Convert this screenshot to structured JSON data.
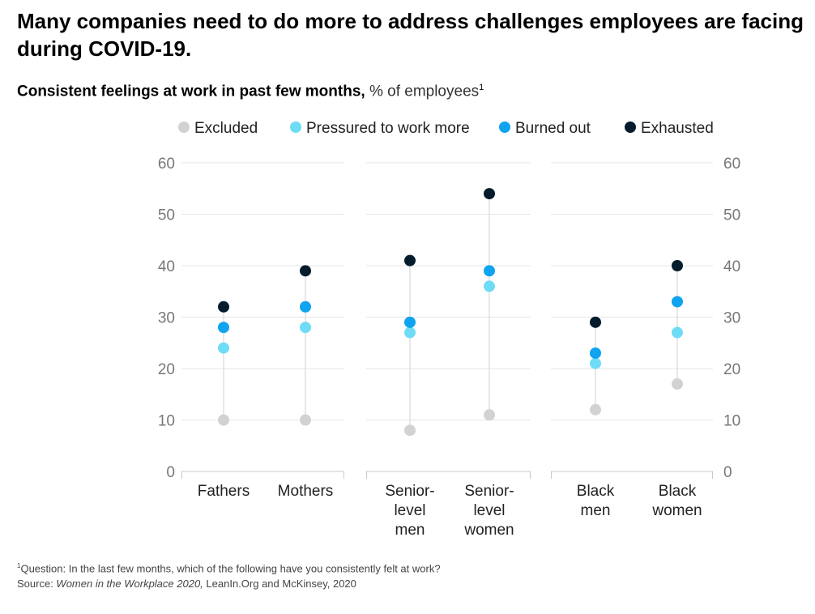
{
  "title": "Many companies need to do more to address challenges employees are facing during COVID-19.",
  "subtitle": {
    "bold": "Consistent feelings at work in past few months,",
    "light": " % of employees",
    "sup": "1"
  },
  "footnote": {
    "sup": "1",
    "question": "Question: In the last few months, which of the following have you consistently felt at work?",
    "source_label": "Source: ",
    "source_italic": "Women in the Workplace 2020,",
    "source_rest": " LeanIn.Org and McKinsey, 2020"
  },
  "chart_data": {
    "type": "scatter",
    "subtype": "dot-range",
    "title": "Consistent feelings at work in past few months, % of employees",
    "ylim": [
      0,
      60
    ],
    "yticks": [
      0,
      10,
      20,
      30,
      40,
      50,
      60
    ],
    "legend_position": "top",
    "groups": [
      {
        "categories": [
          "Fathers",
          "Mothers"
        ]
      },
      {
        "categories": [
          "Senior-level men",
          "Senior-level women"
        ]
      },
      {
        "categories": [
          "Black men",
          "Black women"
        ]
      }
    ],
    "categories": [
      "Fathers",
      "Mothers",
      "Senior-level men",
      "Senior-level women",
      "Black men",
      "Black women"
    ],
    "category_label_lines": [
      [
        "Fathers"
      ],
      [
        "Mothers"
      ],
      [
        "Senior-",
        "level",
        "men"
      ],
      [
        "Senior-",
        "level",
        "women"
      ],
      [
        "Black",
        "men"
      ],
      [
        "Black",
        "women"
      ]
    ],
    "series": [
      {
        "name": "Excluded",
        "color": "#d2d2d2",
        "values": [
          10,
          10,
          8,
          11,
          12,
          17
        ]
      },
      {
        "name": "Pressured to work more",
        "color": "#6fdcf7",
        "values": [
          24,
          28,
          27,
          36,
          21,
          27
        ]
      },
      {
        "name": "Burned out",
        "color": "#0fa3f0",
        "values": [
          28,
          32,
          29,
          39,
          23,
          33
        ]
      },
      {
        "name": "Exhausted",
        "color": "#051c2c",
        "values": [
          32,
          39,
          41,
          54,
          29,
          40
        ]
      }
    ]
  }
}
